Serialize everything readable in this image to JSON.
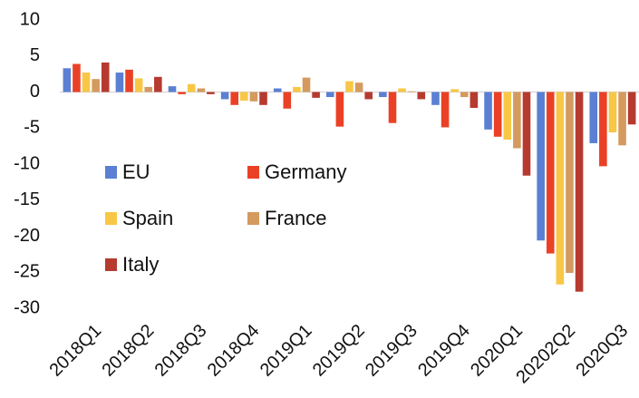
{
  "chart_data": {
    "type": "bar",
    "categories": [
      "2018Q1",
      "2018Q2",
      "2018Q3",
      "2018Q4",
      "2019Q1",
      "2019Q2",
      "2019Q3",
      "2019Q4",
      "2020Q1",
      "20202Q2",
      "2020Q3"
    ],
    "series": [
      {
        "name": "EU",
        "color": "#5a7fd3",
        "values": [
          3.3,
          2.7,
          0.8,
          -1.0,
          0.5,
          -0.7,
          -0.7,
          -1.8,
          -5.2,
          -20.6,
          -7.1
        ]
      },
      {
        "name": "Germany",
        "color": "#ea4126",
        "values": [
          3.9,
          3.1,
          -0.3,
          -1.8,
          -2.3,
          -4.8,
          -4.3,
          -4.9,
          -6.2,
          -22.4,
          -10.3
        ]
      },
      {
        "name": "Spain",
        "color": "#f8c745",
        "values": [
          2.7,
          1.9,
          1.1,
          -1.2,
          0.7,
          1.5,
          0.5,
          0.4,
          -6.6,
          -26.7,
          -5.6
        ]
      },
      {
        "name": "France",
        "color": "#d49a5e",
        "values": [
          1.8,
          0.7,
          0.5,
          -1.3,
          2.0,
          1.3,
          0.1,
          -0.7,
          -7.8,
          -25.1,
          -7.4
        ]
      },
      {
        "name": "Italy",
        "color": "#b63a30",
        "values": [
          4.1,
          2.1,
          -0.3,
          -1.8,
          -0.8,
          -1.0,
          -1.0,
          -2.2,
          -11.6,
          -27.7,
          -4.5
        ]
      }
    ],
    "ylim": [
      -30,
      10
    ],
    "yticks": [
      -30,
      -25,
      -20,
      -15,
      -10,
      -5,
      0,
      5,
      10
    ],
    "grid": false
  }
}
